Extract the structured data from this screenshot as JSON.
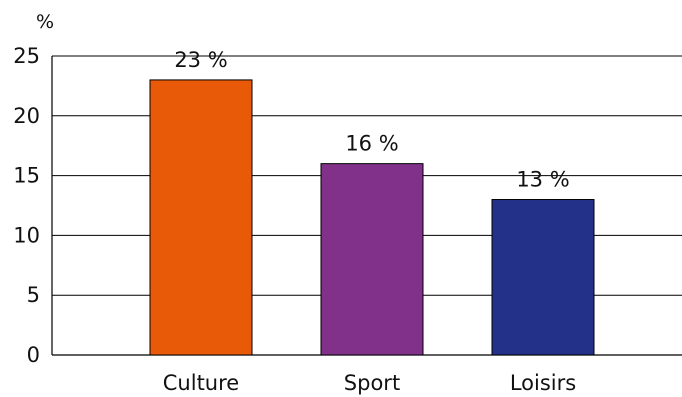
{
  "chart_data": {
    "type": "bar",
    "y_unit": "%",
    "categories": [
      "Culture",
      "Sport",
      "Loisirs"
    ],
    "values": [
      23,
      16,
      13
    ],
    "data_labels": [
      "23 %",
      "16 %",
      "13 %"
    ],
    "colors": [
      "#E85A07",
      "#82318A",
      "#243189"
    ],
    "ylim": [
      0,
      25
    ],
    "yticks": [
      0,
      5,
      10,
      15,
      20,
      25
    ],
    "grid": true
  }
}
